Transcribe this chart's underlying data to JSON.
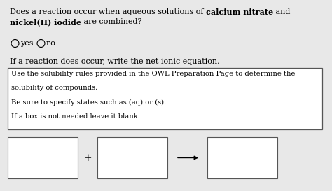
{
  "bg_color": "#e8e8e8",
  "line1_normal1": "Does a reaction occur when aqueous solutions of ",
  "line1_bold": "calcium nitrate",
  "line1_normal2": " and",
  "line2_bold": "nickel(II) iodide",
  "line2_normal": " are combined?",
  "radio_yes": "yes",
  "radio_no": "no",
  "reaction_text": "If a reaction does occur, write the net ionic equation.",
  "hint_lines": [
    "Use the solubility rules provided in the OWL Preparation Page to determine the",
    "solubility of compounds.",
    "Be sure to specify states such as (aq) or (s).",
    "If a box is not needed leave it blank."
  ],
  "font_size_main": 8.0,
  "font_size_hint": 7.2,
  "font_size_radio": 8.0
}
